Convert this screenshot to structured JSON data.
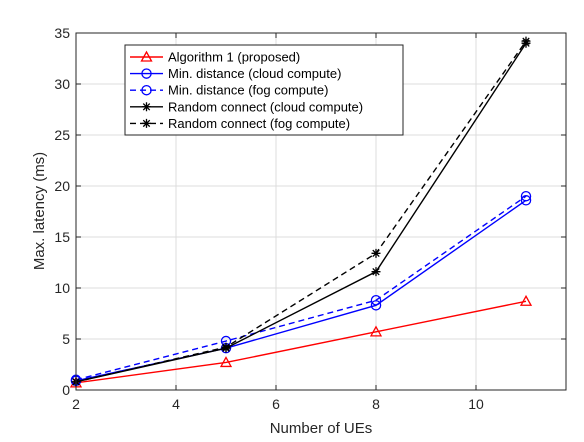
{
  "chart_data": {
    "type": "line",
    "title": "",
    "xlabel": "Number of UEs",
    "ylabel": "Max. latency (ms)",
    "xlim": [
      2,
      11.8
    ],
    "ylim": [
      0,
      35
    ],
    "xticks": [
      2,
      4,
      6,
      8,
      10
    ],
    "yticks": [
      0,
      5,
      10,
      15,
      20,
      25,
      30,
      35
    ],
    "grid": true,
    "legend_position": "top-left",
    "x": [
      2,
      5,
      8,
      11
    ],
    "series": [
      {
        "name": "Algorithm 1 (proposed)",
        "values": [
          0.7,
          2.7,
          5.7,
          8.7
        ],
        "color": "#ff0000",
        "dash": "solid",
        "marker": "triangle"
      },
      {
        "name": "Min. distance (cloud compute)",
        "values": [
          0.9,
          4.1,
          8.3,
          18.6
        ],
        "color": "#0000ff",
        "dash": "solid",
        "marker": "circle"
      },
      {
        "name": "Min. distance (fog compute)",
        "values": [
          1.0,
          4.8,
          8.8,
          19.0
        ],
        "color": "#0000ff",
        "dash": "dashed",
        "marker": "circle"
      },
      {
        "name": "Random connect (cloud compute)",
        "values": [
          0.8,
          4.1,
          11.6,
          34.0
        ],
        "color": "#000000",
        "dash": "solid",
        "marker": "star"
      },
      {
        "name": "Random connect (fog compute)",
        "values": [
          0.8,
          4.2,
          13.4,
          34.2
        ],
        "color": "#000000",
        "dash": "dashed",
        "marker": "star"
      }
    ]
  }
}
